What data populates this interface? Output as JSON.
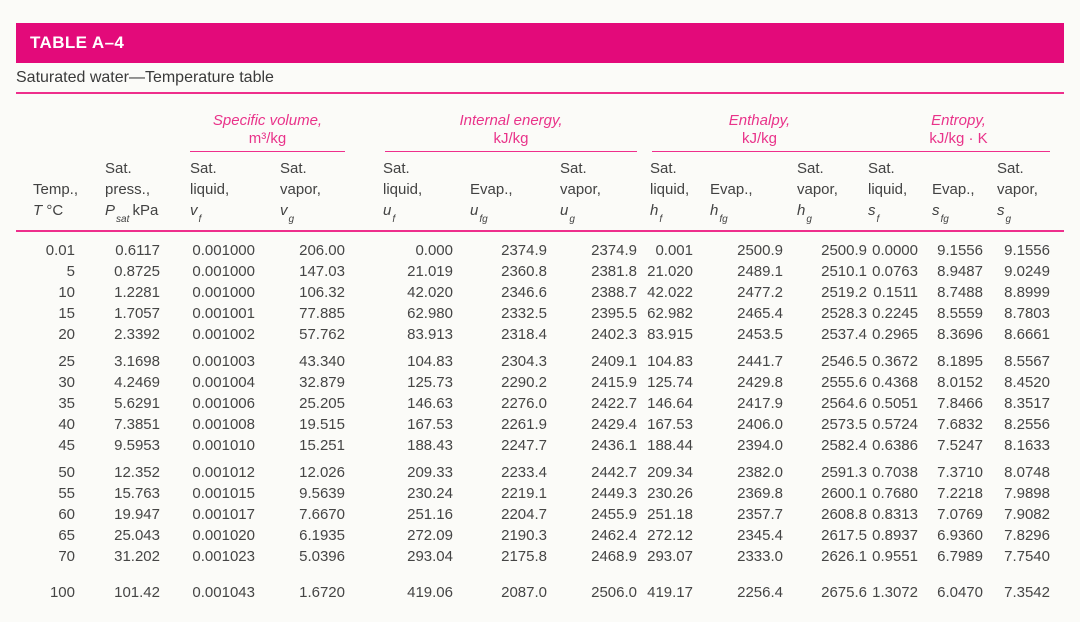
{
  "page": {
    "background": "#fbfbf8"
  },
  "accent": {
    "bar_color": "#e30a7a",
    "pink_text": "#e9338a",
    "rule_pink": "#ee2f8c"
  },
  "header": {
    "table_id": "TABLE A–4",
    "subtitle": "Saturated water—Temperature table"
  },
  "table": {
    "group_headers": [
      {
        "label": "Specific volume,",
        "unit": "m³/kg"
      },
      {
        "label": "Internal energy,",
        "unit": "kJ/kg"
      },
      {
        "label": "Enthalpy,",
        "unit": "kJ/kg"
      },
      {
        "label": "Entropy,",
        "unit": "kJ/kg · K"
      }
    ],
    "columns": [
      {
        "l1": "",
        "l2": "Temp.,",
        "sym": "T",
        "sub": "",
        "unit": "°C"
      },
      {
        "l1": "Sat.",
        "l2": "press.,",
        "sym": "P",
        "sub": "sat",
        "unit": "kPa"
      },
      {
        "l1": "Sat.",
        "l2": "liquid,",
        "sym": "v",
        "sub": "f",
        "unit": ""
      },
      {
        "l1": "Sat.",
        "l2": "vapor,",
        "sym": "v",
        "sub": "g",
        "unit": ""
      },
      {
        "l1": "Sat.",
        "l2": "liquid,",
        "sym": "u",
        "sub": "f",
        "unit": ""
      },
      {
        "l1": "",
        "l2": "Evap.,",
        "sym": "u",
        "sub": "fg",
        "unit": ""
      },
      {
        "l1": "Sat.",
        "l2": "vapor,",
        "sym": "u",
        "sub": "g",
        "unit": ""
      },
      {
        "l1": "Sat.",
        "l2": "liquid,",
        "sym": "h",
        "sub": "f",
        "unit": ""
      },
      {
        "l1": "",
        "l2": "Evap.,",
        "sym": "h",
        "sub": "fg",
        "unit": ""
      },
      {
        "l1": "Sat.",
        "l2": "vapor,",
        "sym": "h",
        "sub": "g",
        "unit": ""
      },
      {
        "l1": "Sat.",
        "l2": "liquid,",
        "sym": "s",
        "sub": "f",
        "unit": ""
      },
      {
        "l1": "",
        "l2": "Evap.,",
        "sym": "s",
        "sub": "fg",
        "unit": ""
      },
      {
        "l1": "Sat.",
        "l2": "vapor,",
        "sym": "s",
        "sub": "g",
        "unit": ""
      }
    ],
    "groups": [
      [
        [
          "0.01",
          "0.6117",
          "0.001000",
          "206.00",
          "0.000",
          "2374.9",
          "2374.9",
          "0.001",
          "2500.9",
          "2500.9",
          "0.0000",
          "9.1556",
          "9.1556"
        ],
        [
          "5",
          "0.8725",
          "0.001000",
          "147.03",
          "21.019",
          "2360.8",
          "2381.8",
          "21.020",
          "2489.1",
          "2510.1",
          "0.0763",
          "8.9487",
          "9.0249"
        ],
        [
          "10",
          "1.2281",
          "0.001000",
          "106.32",
          "42.020",
          "2346.6",
          "2388.7",
          "42.022",
          "2477.2",
          "2519.2",
          "0.1511",
          "8.7488",
          "8.8999"
        ],
        [
          "15",
          "1.7057",
          "0.001001",
          "77.885",
          "62.980",
          "2332.5",
          "2395.5",
          "62.982",
          "2465.4",
          "2528.3",
          "0.2245",
          "8.5559",
          "8.7803"
        ],
        [
          "20",
          "2.3392",
          "0.001002",
          "57.762",
          "83.913",
          "2318.4",
          "2402.3",
          "83.915",
          "2453.5",
          "2537.4",
          "0.2965",
          "8.3696",
          "8.6661"
        ]
      ],
      [
        [
          "25",
          "3.1698",
          "0.001003",
          "43.340",
          "104.83",
          "2304.3",
          "2409.1",
          "104.83",
          "2441.7",
          "2546.5",
          "0.3672",
          "8.1895",
          "8.5567"
        ],
        [
          "30",
          "4.2469",
          "0.001004",
          "32.879",
          "125.73",
          "2290.2",
          "2415.9",
          "125.74",
          "2429.8",
          "2555.6",
          "0.4368",
          "8.0152",
          "8.4520"
        ],
        [
          "35",
          "5.6291",
          "0.001006",
          "25.205",
          "146.63",
          "2276.0",
          "2422.7",
          "146.64",
          "2417.9",
          "2564.6",
          "0.5051",
          "7.8466",
          "8.3517"
        ],
        [
          "40",
          "7.3851",
          "0.001008",
          "19.515",
          "167.53",
          "2261.9",
          "2429.4",
          "167.53",
          "2406.0",
          "2573.5",
          "0.5724",
          "7.6832",
          "8.2556"
        ],
        [
          "45",
          "9.5953",
          "0.001010",
          "15.251",
          "188.43",
          "2247.7",
          "2436.1",
          "188.44",
          "2394.0",
          "2582.4",
          "0.6386",
          "7.5247",
          "8.1633"
        ]
      ],
      [
        [
          "50",
          "12.352",
          "0.001012",
          "12.026",
          "209.33",
          "2233.4",
          "2442.7",
          "209.34",
          "2382.0",
          "2591.3",
          "0.7038",
          "7.3710",
          "8.0748"
        ],
        [
          "55",
          "15.763",
          "0.001015",
          "9.5639",
          "230.24",
          "2219.1",
          "2449.3",
          "230.26",
          "2369.8",
          "2600.1",
          "0.7680",
          "7.2218",
          "7.9898"
        ],
        [
          "60",
          "19.947",
          "0.001017",
          "7.6670",
          "251.16",
          "2204.7",
          "2455.9",
          "251.18",
          "2357.7",
          "2608.8",
          "0.8313",
          "7.0769",
          "7.9082"
        ],
        [
          "65",
          "25.043",
          "0.001020",
          "6.1935",
          "272.09",
          "2190.3",
          "2462.4",
          "272.12",
          "2345.4",
          "2617.5",
          "0.8937",
          "6.9360",
          "7.8296"
        ],
        [
          "70",
          "31.202",
          "0.001023",
          "5.0396",
          "293.04",
          "2175.8",
          "2468.9",
          "293.07",
          "2333.0",
          "2626.1",
          "0.9551",
          "6.7989",
          "7.7540"
        ]
      ],
      [
        [
          "100",
          "101.42",
          "0.001043",
          "1.6720",
          "419.06",
          "2087.0",
          "2506.0",
          "419.17",
          "2256.4",
          "2675.6",
          "1.3072",
          "6.0470",
          "7.3542"
        ]
      ]
    ]
  }
}
